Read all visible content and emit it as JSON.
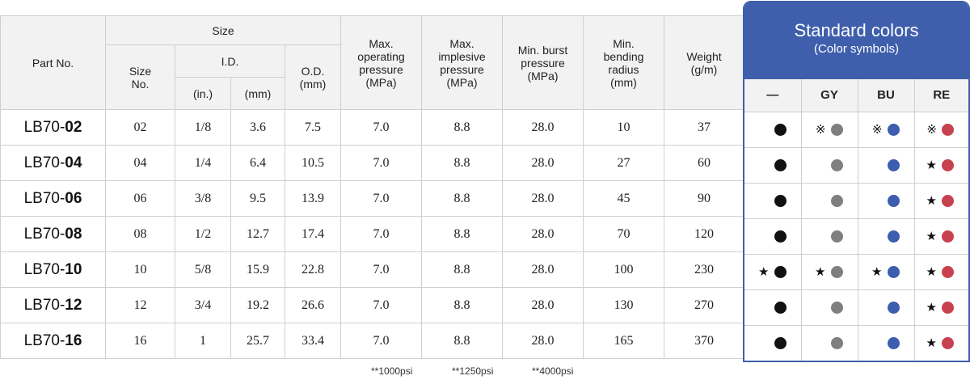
{
  "headers": {
    "part_no": "Part No.",
    "size": "Size",
    "size_no": "Size No.",
    "id": "I.D.",
    "id_in": "(in.)",
    "id_mm": "(mm)",
    "od": "O.D. (mm)",
    "max_operating_pressure": "Max. operating pressure (MPa)",
    "max_implesive_pressure": "Max. implesive pressure (MPa)",
    "min_burst_pressure": "Min. burst pressure (MPa)",
    "min_bending_radius": "Min. bending radius (mm)",
    "weight": "Weight (g/m)"
  },
  "colors_panel": {
    "title": "Standard colors",
    "subtitle": "(Color symbols)",
    "columns": [
      "—",
      "GY",
      "BU",
      "RE"
    ],
    "dot_colors": [
      "#111111",
      "#7f7f7f",
      "#3d5dae",
      "#c8414f"
    ]
  },
  "rows": [
    {
      "part_prefix": "LB70-",
      "part_num": "02",
      "size_no": "02",
      "id_in": "1/8",
      "id_mm": "3.6",
      "od": "7.5",
      "max_op": "7.0",
      "max_imp": "8.8",
      "min_burst": "28.0",
      "min_bend": "10",
      "weight": "37",
      "marks": [
        "",
        "※",
        "※",
        "※"
      ]
    },
    {
      "part_prefix": "LB70-",
      "part_num": "04",
      "size_no": "04",
      "id_in": "1/4",
      "id_mm": "6.4",
      "od": "10.5",
      "max_op": "7.0",
      "max_imp": "8.8",
      "min_burst": "28.0",
      "min_bend": "27",
      "weight": "60",
      "marks": [
        "",
        "",
        "",
        "★"
      ]
    },
    {
      "part_prefix": "LB70-",
      "part_num": "06",
      "size_no": "06",
      "id_in": "3/8",
      "id_mm": "9.5",
      "od": "13.9",
      "max_op": "7.0",
      "max_imp": "8.8",
      "min_burst": "28.0",
      "min_bend": "45",
      "weight": "90",
      "marks": [
        "",
        "",
        "",
        "★"
      ]
    },
    {
      "part_prefix": "LB70-",
      "part_num": "08",
      "size_no": "08",
      "id_in": "1/2",
      "id_mm": "12.7",
      "od": "17.4",
      "max_op": "7.0",
      "max_imp": "8.8",
      "min_burst": "28.0",
      "min_bend": "70",
      "weight": "120",
      "marks": [
        "",
        "",
        "",
        "★"
      ]
    },
    {
      "part_prefix": "LB70-",
      "part_num": "10",
      "size_no": "10",
      "id_in": "5/8",
      "id_mm": "15.9",
      "od": "22.8",
      "max_op": "7.0",
      "max_imp": "8.8",
      "min_burst": "28.0",
      "min_bend": "100",
      "weight": "230",
      "marks": [
        "★",
        "★",
        "★",
        "★"
      ]
    },
    {
      "part_prefix": "LB70-",
      "part_num": "12",
      "size_no": "12",
      "id_in": "3/4",
      "id_mm": "19.2",
      "od": "26.6",
      "max_op": "7.0",
      "max_imp": "8.8",
      "min_burst": "28.0",
      "min_bend": "130",
      "weight": "270",
      "marks": [
        "",
        "",
        "",
        "★"
      ]
    },
    {
      "part_prefix": "LB70-",
      "part_num": "16",
      "size_no": "16",
      "id_in": "1",
      "id_mm": "25.7",
      "od": "33.4",
      "max_op": "7.0",
      "max_imp": "8.8",
      "min_burst": "28.0",
      "min_bend": "165",
      "weight": "370",
      "marks": [
        "",
        "",
        "",
        "★"
      ]
    }
  ],
  "footnotes": [
    "**1000psi",
    "**1250psi",
    "**4000psi"
  ]
}
